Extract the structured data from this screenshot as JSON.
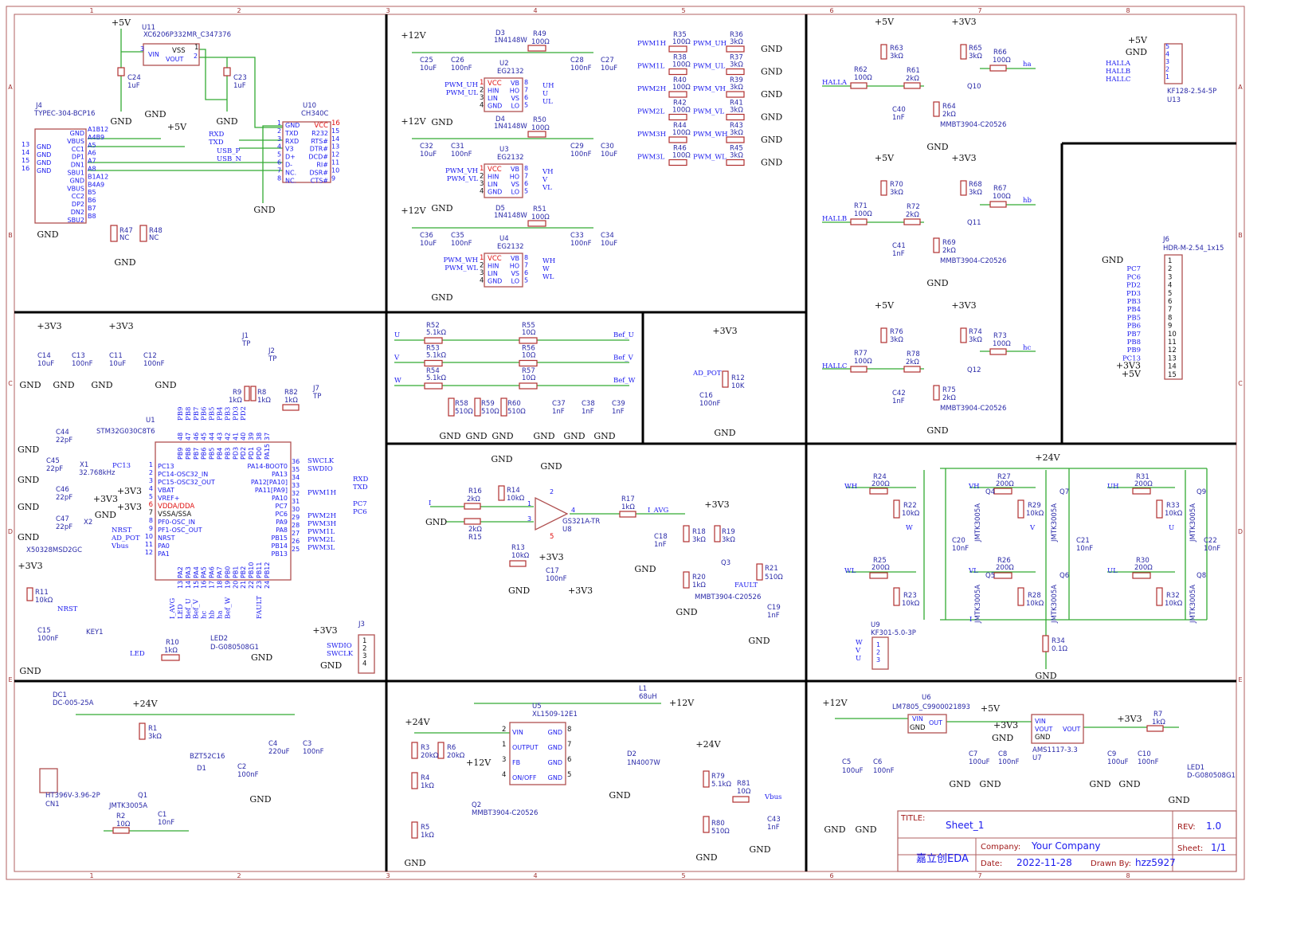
{
  "frame": {
    "cols": [
      "1",
      "2",
      "3",
      "4",
      "5",
      "6",
      "7",
      "8"
    ],
    "rows": [
      "A",
      "B",
      "C",
      "D",
      "E"
    ]
  },
  "common": {
    "gnd": "GND",
    "p5v": "+5V",
    "p3v3": "+3V3",
    "p12v": "+12V",
    "p24v": "+24V"
  },
  "usb": {
    "u11_ref": "U11",
    "u11_val": "XC6206P332MR_C347376",
    "vin": "VIN",
    "vss": "VSS",
    "vout": "VOUT",
    "u11_p3": "3",
    "u11_p1": "1",
    "u11_p2": "2",
    "c24_ref": "C24",
    "c24_val": "1uF",
    "c23_ref": "C23",
    "c23_val": "1uF",
    "j4_ref": "J4",
    "j4_val": "TYPEC-304-BCP16",
    "j4_pins_right": [
      "GND",
      "VBUS",
      "CC1",
      "DP1",
      "DN1",
      "SBU1",
      "GND",
      "VBUS",
      "CC2",
      "DP2",
      "DN2",
      "SBU2"
    ],
    "j4_pin_nums": [
      "A1B12",
      "A4B9",
      "A5",
      "A6",
      "A7",
      "A8",
      "B1A12",
      "B4A9",
      "B5",
      "B6",
      "B7",
      "B8"
    ],
    "j4_pins_left": [
      "GND",
      "GND",
      "GND",
      "GND"
    ],
    "j4_left_nums": [
      "13",
      "14",
      "15",
      "16"
    ],
    "rxd": "RXD",
    "txd": "TXD",
    "usb_p": "USB_P",
    "usb_n": "USB_N",
    "u10_ref": "U10",
    "u10_val": "CH340C",
    "u10_left": [
      "GND",
      "TXD",
      "RXD",
      "V3",
      "D+",
      "D-",
      "NC.",
      "NC."
    ],
    "u10_left_nums": [
      "1",
      "2",
      "3",
      "4",
      "5",
      "6",
      "7",
      "8"
    ],
    "u10_right": [
      "VCC",
      "R232",
      "RTS#",
      "DTR#",
      "DCD#",
      "RI#",
      "DSR#",
      "CTS#"
    ],
    "u10_right_nums": [
      "16",
      "15",
      "14",
      "13",
      "12",
      "11",
      "10",
      "9"
    ],
    "r47_ref": "R47",
    "r47_val": "NC",
    "r48_ref": "R48",
    "r48_val": "NC"
  },
  "driver_pins": {
    "left": [
      "VCC",
      "HIN",
      "LIN",
      "GND"
    ],
    "right": [
      "VB",
      "HO",
      "VS",
      "LO"
    ],
    "left_nums": [
      "1",
      "2",
      "3",
      "4"
    ],
    "right_nums": [
      "8",
      "7",
      "6",
      "5"
    ]
  },
  "drivers": [
    {
      "d_ref": "D3",
      "d_val": "1N4148W",
      "r_ref": "R49",
      "r_val": "100Ω",
      "c1_ref": "C25",
      "c1_val": "10uF",
      "c2_ref": "C26",
      "c2_val": "100nF",
      "u_ref": "U2",
      "u_val": "EG2132",
      "c3_ref": "C28",
      "c3_val": "100nF",
      "c4_ref": "C27",
      "c4_val": "10uF",
      "in_h": "PWM_UH",
      "in_l": "PWM_UL",
      "out_h": "UH",
      "out_m": "U",
      "out_l": "UL"
    },
    {
      "d_ref": "D4",
      "d_val": "1N4148W",
      "r_ref": "R50",
      "r_val": "100Ω",
      "c1_ref": "C32",
      "c1_val": "10uF",
      "c2_ref": "C31",
      "c2_val": "100nF",
      "u_ref": "U3",
      "u_val": "EG2132",
      "c3_ref": "C29",
      "c3_val": "100nF",
      "c4_ref": "C30",
      "c4_val": "10uF",
      "in_h": "PWM_VH",
      "in_l": "PWM_VL",
      "out_h": "VH",
      "out_m": "V",
      "out_l": "VL"
    },
    {
      "d_ref": "D5",
      "d_val": "1N4148W",
      "r_ref": "R51",
      "r_val": "100Ω",
      "c1_ref": "C36",
      "c1_val": "10uF",
      "c2_ref": "C35",
      "c2_val": "100nF",
      "u_ref": "U4",
      "u_val": "EG2132",
      "c3_ref": "C33",
      "c3_val": "100nF",
      "c4_ref": "C34",
      "c4_val": "10uF",
      "in_h": "PWM_WH",
      "in_l": "PWM_WL",
      "out_h": "WH",
      "out_m": "W",
      "out_l": "WL"
    }
  ],
  "pwm_dividers": [
    {
      "in": "PWM1H",
      "r1_ref": "R35",
      "r1_val": "100Ω",
      "out": "PWM_UH",
      "r2_ref": "R36",
      "r2_val": "3kΩ"
    },
    {
      "in": "PWM1L",
      "r1_ref": "R38",
      "r1_val": "100Ω",
      "out": "PWM_UL",
      "r2_ref": "R37",
      "r2_val": "3kΩ"
    },
    {
      "in": "PWM2H",
      "r1_ref": "R40",
      "r1_val": "100Ω",
      "out": "PWM_VH",
      "r2_ref": "R39",
      "r2_val": "3kΩ"
    },
    {
      "in": "PWM2L",
      "r1_ref": "R42",
      "r1_val": "100Ω",
      "out": "PWM_VL",
      "r2_ref": "R41",
      "r2_val": "3kΩ"
    },
    {
      "in": "PWM3H",
      "r1_ref": "R44",
      "r1_val": "100Ω",
      "out": "PWM_WH",
      "r2_ref": "R43",
      "r2_val": "3kΩ"
    },
    {
      "in": "PWM3L",
      "r1_ref": "R46",
      "r1_val": "100Ω",
      "out": "PWM_WL",
      "r2_ref": "R45",
      "r2_val": "3kΩ"
    }
  ],
  "hall": [
    {
      "ra_ref": "R63",
      "ra_val": "3kΩ",
      "rin_ref": "R62",
      "rin_val": "100Ω",
      "net": "HALLA",
      "rb_ref": "R61",
      "rb_val": "2kΩ",
      "c_ref": "C40",
      "c_val": "1nF",
      "rc_ref": "R64",
      "rc_val": "2kΩ",
      "q_part": "MMBT3904-C20526",
      "q_ref": "Q10",
      "rd_ref": "R65",
      "rd_val": "3kΩ",
      "ro_ref": "R66",
      "ro_val": "100Ω",
      "out": "ha"
    },
    {
      "ra_ref": "R70",
      "ra_val": "3kΩ",
      "rin_ref": "R71",
      "rin_val": "100Ω",
      "net": "HALLB",
      "rb_ref": "R72",
      "rb_val": "2kΩ",
      "c_ref": "C41",
      "c_val": "1nF",
      "rc_ref": "R69",
      "rc_val": "2kΩ",
      "q_part": "MMBT3904-C20526",
      "q_ref": "Q11",
      "rd_ref": "R68",
      "rd_val": "3kΩ",
      "ro_ref": "R67",
      "ro_val": "100Ω",
      "out": "hb"
    },
    {
      "ra_ref": "R76",
      "ra_val": "3kΩ",
      "rin_ref": "R77",
      "rin_val": "100Ω",
      "net": "HALLC",
      "rb_ref": "R78",
      "rb_val": "2kΩ",
      "c_ref": "C42",
      "c_val": "1nF",
      "rc_ref": "R75",
      "rc_val": "2kΩ",
      "q_part": "MMBT3904-C20526",
      "q_ref": "Q12",
      "rd_ref": "R74",
      "rd_val": "3kΩ",
      "ro_ref": "R73",
      "ro_val": "100Ω",
      "out": "hc"
    }
  ],
  "u13": {
    "ref": "U13",
    "val": "KF128-2.54-5P",
    "nets": [
      "+5V",
      "GND",
      "HALLA",
      "HALLB",
      "HALLC"
    ],
    "nums": [
      "5",
      "4",
      "3",
      "2",
      "1"
    ]
  },
  "j6": {
    "ref": "J6",
    "val": "HDR-M-2.54_1x15",
    "nets": [
      "GND",
      "PC7",
      "PC6",
      "PD2",
      "PD3",
      "PB3",
      "PB4",
      "PB5",
      "PB6",
      "PB7",
      "PB8",
      "PB9",
      "PC13",
      "+3V3",
      "+5V"
    ],
    "nums": [
      "1",
      "2",
      "3",
      "4",
      "5",
      "6",
      "7",
      "8",
      "9",
      "10",
      "11",
      "12",
      "13",
      "14",
      "15"
    ]
  },
  "mcu": {
    "c14_ref": "C14",
    "c14_val": "10uF",
    "c13_ref": "C13",
    "c13_val": "100nF",
    "c11_ref": "C11",
    "c11_val": "10uF",
    "c12_ref": "C12",
    "c12_val": "100nF",
    "j1_ref": "J1",
    "j1_val": "TP",
    "j2_ref": "J2",
    "j2_val": "TP",
    "j7_ref": "J7",
    "j7_val": "TP",
    "r9_ref": "R9",
    "r9_val": "1kΩ",
    "r8_ref": "R8",
    "r8_val": "1kΩ",
    "r82_ref": "R82",
    "r82_val": "1kΩ",
    "u1_ref": "U1",
    "u1_val": "STM32G030C8T6",
    "c44_ref": "C44",
    "c44_val": "22pF",
    "c45_ref": "C45",
    "c45_val": "22pF",
    "x1_ref": "X1",
    "x1_val": "32.768kHz",
    "c46_ref": "C46",
    "c46_val": "22pF",
    "c47_ref": "C47",
    "c47_val": "22pF",
    "x2_ref": "X2",
    "x2_val": "X50328MSD2GC",
    "pc13_net": "PC13",
    "left_pins": [
      "PC13",
      "PC14-OSC32_IN",
      "PC15-OSC32_OUT",
      "VBAT",
      "VREF+",
      "VDDA/DDA",
      "VSSA/SSA",
      "PF0-OSC_IN",
      "PF1-OSC_OUT",
      "NRST",
      "PA0",
      "PA1"
    ],
    "left_nums": [
      "1",
      "2",
      "3",
      "4",
      "5",
      "6",
      "7",
      "8",
      "9",
      "10",
      "11",
      "12"
    ],
    "right_pins": [
      "PA14-BOOT0",
      "PA13",
      "PA12[PA10]",
      "PA11[PA9]",
      "PA10",
      "PC7",
      "PC6",
      "PA9",
      "PA8",
      "PB15",
      "PB14",
      "PB13"
    ],
    "right_nums": [
      "36",
      "35",
      "34",
      "33",
      "32",
      "31",
      "30",
      "29",
      "28",
      "27",
      "26",
      "25"
    ],
    "top_pins": [
      "PB9",
      "PB8",
      "PB7",
      "PB6",
      "PB5",
      "PB4",
      "PB3",
      "PD3",
      "PD2",
      "PD1",
      "PD0",
      "PA15"
    ],
    "top_nums": [
      "48",
      "47",
      "46",
      "45",
      "44",
      "43",
      "42",
      "41",
      "40",
      "39",
      "38",
      "37"
    ],
    "top_nets": [
      "PB9",
      "PB8",
      "PB7",
      "PB6",
      "PB5",
      "PB4",
      "PB3",
      "PD3",
      "PD2"
    ],
    "bottom_pins": [
      "PA2",
      "PA3",
      "PA4",
      "PA5",
      "PA6",
      "PA7",
      "PB0",
      "PB1",
      "PB2",
      "PB10",
      "PB11",
      "PB12"
    ],
    "bottom_nums": [
      "13",
      "14",
      "15",
      "16",
      "17",
      "18",
      "19",
      "20",
      "21",
      "22",
      "23",
      "24"
    ],
    "bottom_nets": [
      "I_AVG",
      "LED",
      "Bef_U",
      "Bef_V",
      "hc",
      "hb",
      "ha",
      "Bef_W",
      "",
      "",
      "",
      "FAULT"
    ],
    "left_nets": [
      "NRST",
      "AD_POT",
      "Vbus"
    ],
    "right_nets": [
      "SWCLK",
      "SWDIO",
      "RXD",
      "TXD",
      "PWM1H",
      "PC7",
      "PC6",
      "PWM2H",
      "PWM3H",
      "PWM1L",
      "PWM2L",
      "PWM3L"
    ],
    "r11_ref": "R11",
    "r11_val": "10kΩ",
    "c15_ref": "C15",
    "c15_val": "100nF",
    "nrst": "NRST",
    "key1": "KEY1",
    "led_net": "LED",
    "r10_ref": "R10",
    "r10_val": "1kΩ",
    "led2_ref": "LED2",
    "led2_val": "D-G080508G1",
    "j3_ref": "J3",
    "swdio": "SWDIO",
    "swclk": "SWCLK",
    "j3_nums": [
      "1",
      "2",
      "3",
      "4"
    ]
  },
  "sense": {
    "nets_in": [
      "U",
      "V",
      "W"
    ],
    "r_in": [
      {
        "ref": "R52",
        "val": "5.1kΩ"
      },
      {
        "ref": "R53",
        "val": "5.1kΩ"
      },
      {
        "ref": "R54",
        "val": "5.1kΩ"
      }
    ],
    "r_ser": [
      {
        "ref": "R55",
        "val": "10Ω"
      },
      {
        "ref": "R56",
        "val": "10Ω"
      },
      {
        "ref": "R57",
        "val": "10Ω"
      }
    ],
    "nets_out": [
      "Bef_U",
      "Bef_V",
      "Bef_W"
    ],
    "r_gnd": [
      {
        "ref": "R58",
        "val": "510Ω"
      },
      {
        "ref": "R59",
        "val": "510Ω"
      },
      {
        "ref": "R60",
        "val": "510Ω"
      }
    ],
    "caps": [
      {
        "ref": "C37",
        "val": "1nF"
      },
      {
        "ref": "C38",
        "val": "1nF"
      },
      {
        "ref": "C39",
        "val": "1nF"
      }
    ]
  },
  "pot": {
    "ad_pot": "AD_POT",
    "r12_ref": "R12",
    "r12_val": "10K",
    "c16_ref": "C16",
    "c16_val": "100nF"
  },
  "opamp": {
    "r16_ref": "R16",
    "r16_val": "2kΩ",
    "r14_ref": "R14",
    "r14_val": "10kΩ",
    "i_net": "I",
    "r15_val": "2kΩ",
    "r15_ref": "R15",
    "u8_val": "GS321A-TR",
    "u8_ref": "U8",
    "r13_ref": "R13",
    "r13_val": "10kΩ",
    "c17_ref": "C17",
    "c17_val": "100nF",
    "r17_ref": "R17",
    "r17_val": "1kΩ",
    "i_avg": "I_AVG",
    "c18_ref": "C18",
    "c18_val": "1nF",
    "r18_ref": "R18",
    "r18_val": "3kΩ",
    "r19_ref": "R19",
    "r19_val": "3kΩ",
    "r20_ref": "R20",
    "r20_val": "1kΩ",
    "q3_ref": "Q3",
    "q3_val": "MMBT3904-C20526",
    "fault": "FAULT",
    "r21_ref": "R21",
    "r21_val": "510Ω",
    "c19_ref": "C19",
    "c19_val": "1nF",
    "pins": [
      "1",
      "3",
      "4",
      "2",
      "5"
    ]
  },
  "bridge": {
    "legs": [
      {
        "hn": "WH",
        "rh_ref": "R24",
        "rh_val": "200Ω",
        "rgh_ref": "R22",
        "rgh_val": "10kΩ",
        "qh": "Q4",
        "mid": "W",
        "ln": "WL",
        "rl_ref": "R25",
        "rl_val": "200Ω",
        "rgl_ref": "R23",
        "rgl_val": "10kΩ",
        "ql": "Q5",
        "c_ref": "C20",
        "c_val": "10nF"
      },
      {
        "hn": "VH",
        "rh_ref": "R27",
        "rh_val": "200Ω",
        "rgh_ref": "R29",
        "rgh_val": "10kΩ",
        "qh": "Q7",
        "mid": "V",
        "ln": "VL",
        "rl_ref": "R26",
        "rl_val": "200Ω",
        "rgl_ref": "R28",
        "rgl_val": "10kΩ",
        "ql": "Q6",
        "c_ref": "C21",
        "c_val": "10nF"
      },
      {
        "hn": "UH",
        "rh_ref": "R31",
        "rh_val": "200Ω",
        "rgh_ref": "R33",
        "rgh_val": "10kΩ",
        "qh": "Q9",
        "mid": "U",
        "ln": "UL",
        "rl_ref": "R30",
        "rl_val": "200Ω",
        "rgl_ref": "R32",
        "rgl_val": "10kΩ",
        "ql": "Q8",
        "c_ref": "C22",
        "c_val": "10nF"
      }
    ],
    "mosfet": "JMTK3005A",
    "i_net": "I",
    "r34_ref": "R34",
    "r34_val": "0.1Ω",
    "u9_ref": "U9",
    "u9_val": "KF301-5.0-3P",
    "u9_nets": [
      "W",
      "V",
      "U"
    ],
    "u9_nums": [
      "1",
      "2",
      "3"
    ]
  },
  "input": {
    "dc1_ref": "DC1",
    "dc1_val": "DC-005-25A",
    "r1_ref": "R1",
    "r1_val": "3kΩ",
    "d1_val": "BZT52C16",
    "d1_ref": "D1",
    "c2_ref": "C2",
    "c2_val": "100nF",
    "c4_ref": "C4",
    "c4_val": "220uF",
    "c3_ref": "C3",
    "c3_val": "100nF",
    "q1_ref": "Q1",
    "q1_val": "JMTK3005A",
    "r2_ref": "R2",
    "r2_val": "10Ω",
    "c1_ref": "C1",
    "c1_val": "10nF",
    "cn1_ref": "CN1",
    "cn1_val": "HT396V-3.96-2P"
  },
  "buck": {
    "r3_ref": "R3",
    "r3_val": "20kΩ",
    "r6_ref": "R6",
    "r6_val": "20kΩ",
    "r4_ref": "R4",
    "r4_val": "1kΩ",
    "r5_ref": "R5",
    "r5_val": "1kΩ",
    "q2_ref": "Q2",
    "q2_val": "MMBT3904-C20526",
    "u5_ref": "U5",
    "u5_val": "XL1509-12E1",
    "left_pins": [
      "VIN",
      "OUTPUT",
      "FB",
      "ON/OFF"
    ],
    "left_nums": [
      "2",
      "1",
      "3",
      "4"
    ],
    "right_pins": [
      "GND",
      "GND",
      "GND",
      "GND"
    ],
    "right_nums": [
      "8",
      "7",
      "6",
      "5"
    ],
    "l1_ref": "L1",
    "l1_val": "68uH",
    "d2_ref": "D2",
    "d2_val": "1N4007W",
    "r79_ref": "R79",
    "r79_val": "5.1kΩ",
    "r81_ref": "R81",
    "r81_val": "10Ω",
    "vbus": "Vbus",
    "r80_ref": "R80",
    "r80_val": "510Ω",
    "c43_ref": "C43",
    "c43_val": "1nF"
  },
  "ldo": {
    "c5_ref": "C5",
    "c5_val": "100uF",
    "c6_ref": "C6",
    "c6_val": "100nF",
    "u6_ref": "U6",
    "u6_val": "LM7805_C9900021893",
    "u6_vin": "VIN",
    "u6_gnd": "GND",
    "u6_out": "OUT",
    "c7_ref": "C7",
    "c7_val": "100uF",
    "c8_ref": "C8",
    "c8_val": "100nF",
    "u7_vin": "VIN",
    "u7_vout": "VOUT",
    "u7_gnd": "GND",
    "u7_vout2": "VOUT",
    "u7_val": "AMS1117-3.3",
    "u7_ref": "U7",
    "c9_ref": "C9",
    "c9_val": "100uF",
    "c10_ref": "C10",
    "c10_val": "100nF",
    "r7_ref": "R7",
    "r7_val": "1kΩ",
    "led1_ref": "LED1",
    "led1_val": "D-G080508G1"
  },
  "title_block": {
    "title_label": "TITLE:",
    "title": "Sheet_1",
    "rev_label": "REV:",
    "rev": "1.0",
    "company_label": "Company:",
    "company": "Your Company",
    "sheet_label": "Sheet:",
    "sheet": "1/1",
    "date_label": "Date:",
    "date": "2022-11-28",
    "drawn_label": "Drawn By:",
    "drawn": "hzz5927",
    "logo": "嘉立创EDA"
  }
}
